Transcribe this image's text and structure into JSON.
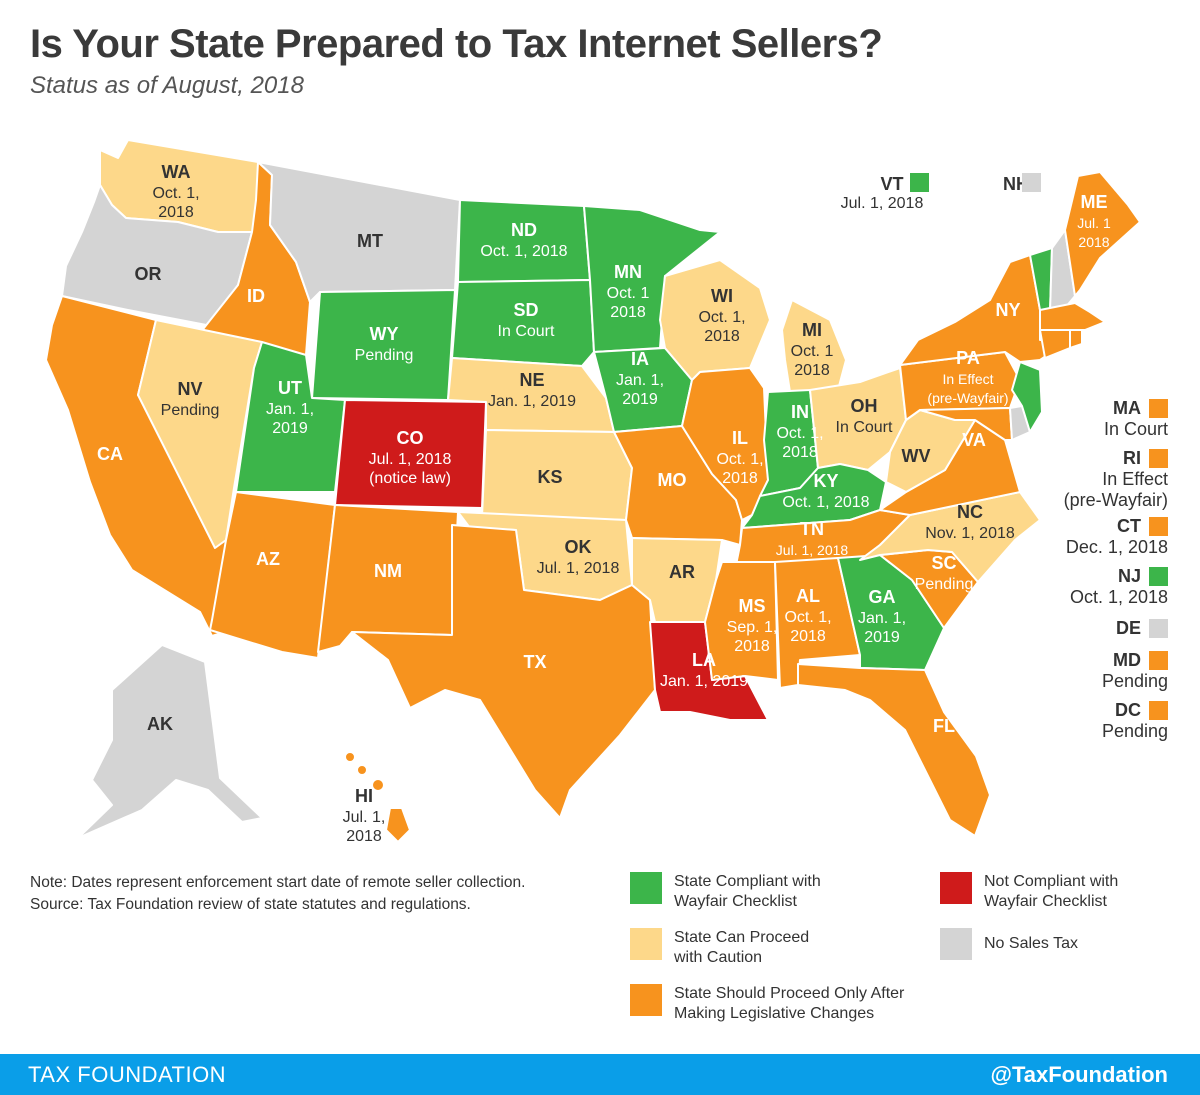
{
  "title": "Is Your State Prepared to Tax Internet Sellers?",
  "subtitle": "Status as of August, 2018",
  "colors": {
    "compliant": "#3cb54a",
    "caution": "#fdd88a",
    "legislative": "#f7931e",
    "not_compliant": "#cf1b1b",
    "no_tax": "#d4d4d4",
    "footer": "#0a9ee8"
  },
  "states": {
    "WA": {
      "abbr": "WA",
      "detail": [
        "Oct. 1,",
        "2018"
      ]
    },
    "OR": {
      "abbr": "OR",
      "detail": []
    },
    "CA": {
      "abbr": "CA",
      "detail": []
    },
    "ID": {
      "abbr": "ID",
      "detail": []
    },
    "NV": {
      "abbr": "NV",
      "detail": [
        "Pending"
      ]
    },
    "MT": {
      "abbr": "MT",
      "detail": []
    },
    "WY": {
      "abbr": "WY",
      "detail": [
        "Pending"
      ]
    },
    "UT": {
      "abbr": "UT",
      "detail": [
        "Jan. 1,",
        "2019"
      ]
    },
    "CO": {
      "abbr": "CO",
      "detail": [
        "Jul. 1, 2018",
        "(notice law)"
      ]
    },
    "AZ": {
      "abbr": "AZ",
      "detail": []
    },
    "NM": {
      "abbr": "NM",
      "detail": []
    },
    "ND": {
      "abbr": "ND",
      "detail": [
        "Oct. 1, 2018"
      ]
    },
    "SD": {
      "abbr": "SD",
      "detail": [
        "In Court"
      ]
    },
    "NE": {
      "abbr": "NE",
      "detail": [
        "Jan. 1, 2019"
      ]
    },
    "KS": {
      "abbr": "KS",
      "detail": []
    },
    "OK": {
      "abbr": "OK",
      "detail": [
        "Jul. 1, 2018"
      ]
    },
    "TX": {
      "abbr": "TX",
      "detail": []
    },
    "MN": {
      "abbr": "MN",
      "detail": [
        "Oct. 1",
        "2018"
      ]
    },
    "IA": {
      "abbr": "IA",
      "detail": [
        "Jan. 1,",
        "2019"
      ]
    },
    "MO": {
      "abbr": "MO",
      "detail": []
    },
    "AR": {
      "abbr": "AR",
      "detail": []
    },
    "LA": {
      "abbr": "LA",
      "detail": [
        "Jan. 1, 2019"
      ]
    },
    "WI": {
      "abbr": "WI",
      "detail": [
        "Oct. 1,",
        "2018"
      ]
    },
    "IL": {
      "abbr": "IL",
      "detail": [
        "Oct. 1,",
        "2018"
      ]
    },
    "MI": {
      "abbr": "MI",
      "detail": [
        "Oct. 1",
        "2018"
      ]
    },
    "IN": {
      "abbr": "IN",
      "detail": [
        "Oct. 1,",
        "2018"
      ]
    },
    "OH": {
      "abbr": "OH",
      "detail": [
        "In Court"
      ]
    },
    "KY": {
      "abbr": "KY",
      "detail": [
        "Oct. 1, 2018"
      ]
    },
    "TN": {
      "abbr": "TN",
      "detail": [
        "Jul. 1, 2018"
      ]
    },
    "MS": {
      "abbr": "MS",
      "detail": [
        "Sep. 1,",
        "2018"
      ]
    },
    "AL": {
      "abbr": "AL",
      "detail": [
        "Oct. 1,",
        "2018"
      ]
    },
    "GA": {
      "abbr": "GA",
      "detail": [
        "Jan. 1,",
        "2019"
      ]
    },
    "FL": {
      "abbr": "FL",
      "detail": []
    },
    "SC": {
      "abbr": "SC",
      "detail": [
        "Pending"
      ]
    },
    "NC": {
      "abbr": "NC",
      "detail": [
        "Nov. 1, 2018"
      ]
    },
    "VA": {
      "abbr": "VA",
      "detail": []
    },
    "WV": {
      "abbr": "WV",
      "detail": []
    },
    "PA": {
      "abbr": "PA",
      "detail": [
        "In Effect",
        "(pre-Wayfair)"
      ]
    },
    "NY": {
      "abbr": "NY",
      "detail": []
    },
    "ME": {
      "abbr": "ME",
      "detail": [
        "Jul. 1",
        "2018"
      ]
    },
    "AK": {
      "abbr": "AK",
      "detail": []
    },
    "HI": {
      "abbr": "HI",
      "detail": [
        "Jul. 1,",
        "2018"
      ]
    }
  },
  "callouts": {
    "VT": {
      "abbr": "VT",
      "detail": "Jul. 1, 2018"
    },
    "NH": {
      "abbr": "NH"
    }
  },
  "sidebar": [
    {
      "abbr": "MA",
      "detail": [
        "In Court"
      ],
      "status": "legislative"
    },
    {
      "abbr": "RI",
      "detail": [
        "In Effect",
        "(pre-Wayfair)"
      ],
      "status": "legislative"
    },
    {
      "abbr": "CT",
      "detail": [
        "Dec. 1, 2018"
      ],
      "status": "legislative"
    },
    {
      "abbr": "NJ",
      "detail": [
        "Oct. 1, 2018"
      ],
      "status": "compliant"
    },
    {
      "abbr": "DE",
      "detail": [],
      "status": "no_tax"
    },
    {
      "abbr": "MD",
      "detail": [
        "Pending"
      ],
      "status": "legislative"
    },
    {
      "abbr": "DC",
      "detail": [
        "Pending"
      ],
      "status": "legislative"
    }
  ],
  "note": {
    "line1": "Note: Dates represent enforcement start date of remote seller collection.",
    "line2": "Source: Tax Foundation review of state statutes and regulations."
  },
  "legend": {
    "compliant": [
      "State Compliant with",
      "Wayfair Checklist"
    ],
    "caution": [
      "State Can Proceed",
      "with Caution"
    ],
    "legislative": [
      "State Should Proceed Only After",
      "Making Legislative Changes"
    ],
    "not_compliant": [
      "Not Compliant with",
      "Wayfair Checklist"
    ],
    "no_tax": [
      "No Sales Tax"
    ]
  },
  "footer": {
    "left": "TAX FOUNDATION",
    "right": "@TaxFoundation"
  }
}
